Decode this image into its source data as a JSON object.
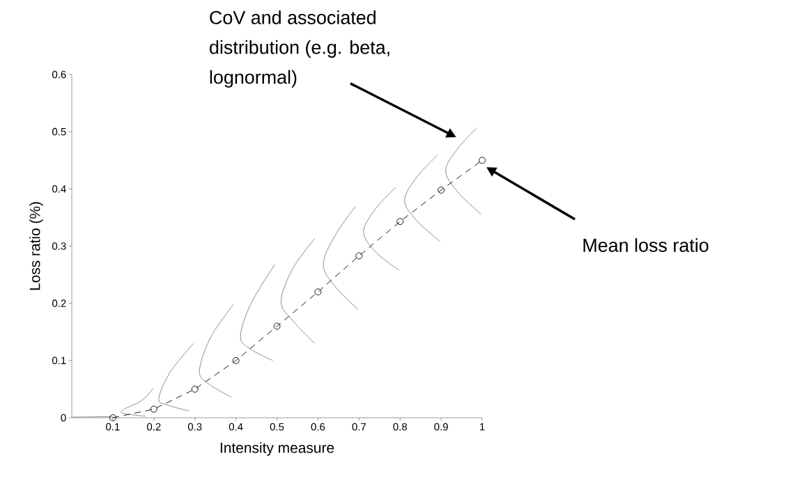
{
  "chart_data": {
    "type": "line",
    "xlabel": "Intensity measure",
    "ylabel": "Loss ratio (%)",
    "xlim": [
      0,
      1
    ],
    "ylim": [
      0,
      0.6
    ],
    "xticks": [
      0.1,
      0.2,
      0.3,
      0.4,
      0.5,
      0.6,
      0.7,
      0.8,
      0.9,
      1
    ],
    "yticks": [
      0,
      0.1,
      0.2,
      0.3,
      0.4,
      0.5,
      0.6
    ],
    "grid": false,
    "annotations": [
      "CoV and associated distribution (e.g. beta, lognormal)",
      "Mean loss ratio"
    ],
    "series": [
      {
        "type": "line",
        "color": "#808080",
        "marker": "none",
        "line_style": "solid",
        "x": [
          0.0,
          0.1
        ],
        "values": [
          0.001,
          0.002
        ]
      },
      {
        "type": "line",
        "color": "#808080",
        "marker": "none",
        "line_style": "solid",
        "x": [
          0.18,
          0.12,
          0.17,
          0.198
        ],
        "values": [
          0.003,
          0.01,
          0.03,
          0.051
        ]
      },
      {
        "type": "line",
        "color": "#808080",
        "marker": "none",
        "line_style": "solid",
        "x": [
          0.285,
          0.235,
          0.212,
          0.24,
          0.297
        ],
        "values": [
          0.012,
          0.022,
          0.033,
          0.08,
          0.13
        ]
      },
      {
        "type": "line",
        "color": "#808080",
        "marker": "none",
        "line_style": "solid",
        "x": [
          0.389,
          0.336,
          0.311,
          0.338,
          0.394
        ],
        "values": [
          0.036,
          0.058,
          0.081,
          0.14,
          0.198
        ]
      },
      {
        "type": "line",
        "color": "#808080",
        "marker": "none",
        "line_style": "solid",
        "x": [
          0.49,
          0.436,
          0.411,
          0.437,
          0.495
        ],
        "values": [
          0.1,
          0.12,
          0.142,
          0.2,
          0.268
        ]
      },
      {
        "type": "line",
        "color": "#808080",
        "marker": "none",
        "line_style": "solid",
        "x": [
          0.592,
          0.538,
          0.51,
          0.538,
          0.592
        ],
        "values": [
          0.13,
          0.17,
          0.203,
          0.26,
          0.313
        ]
      },
      {
        "type": "line",
        "color": "#808080",
        "marker": "none",
        "line_style": "solid",
        "x": [
          0.698,
          0.641,
          0.613,
          0.641,
          0.691
        ],
        "values": [
          0.189,
          0.23,
          0.268,
          0.318,
          0.369
        ]
      },
      {
        "type": "line",
        "color": "#808080",
        "marker": "none",
        "line_style": "solid",
        "x": [
          0.797,
          0.74,
          0.711,
          0.74,
          0.79
        ],
        "values": [
          0.258,
          0.29,
          0.325,
          0.365,
          0.403
        ]
      },
      {
        "type": "line",
        "color": "#808080",
        "marker": "none",
        "line_style": "solid",
        "x": [
          0.898,
          0.84,
          0.811,
          0.84,
          0.891
        ],
        "values": [
          0.308,
          0.345,
          0.38,
          0.42,
          0.459
        ]
      },
      {
        "type": "line",
        "color": "#808080",
        "marker": "none",
        "line_style": "solid",
        "x": [
          0.997,
          0.94,
          0.911,
          0.94,
          0.987
        ],
        "values": [
          0.356,
          0.395,
          0.432,
          0.47,
          0.507
        ]
      },
      {
        "color": "#000000",
        "marker": "circle",
        "line_style": "dashed",
        "x": [
          0.1,
          0.2,
          0.3,
          0.4,
          0.5,
          0.6,
          0.7,
          0.8,
          0.9,
          1.0
        ],
        "values": [
          0.0,
          0.015,
          0.05,
          0.1,
          0.16,
          0.22,
          0.283,
          0.343,
          0.398,
          0.45
        ]
      }
    ]
  }
}
